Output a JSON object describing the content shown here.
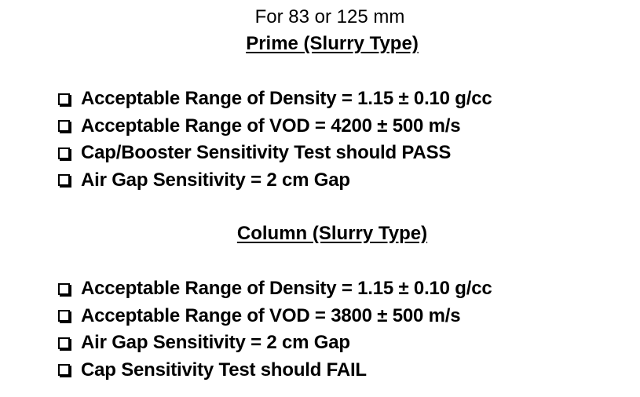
{
  "subtitle": "For 83 or 125 mm",
  "sections": [
    {
      "heading": "Prime (Slurry Type)",
      "items": [
        {
          "label": "Acceptable Range of Density = 1.15 ± 0.10 g/cc",
          "icon": "checkbox-empty-icon"
        },
        {
          "label": "Acceptable Range of VOD = 4200 ± 500 m/s",
          "icon": "checkbox-empty-icon"
        },
        {
          "label": "Cap/Booster Sensitivity Test should PASS",
          "icon": "checkbox-empty-icon"
        },
        {
          "label": "Air Gap Sensitivity = 2 cm Gap",
          "icon": "checkbox-empty-icon"
        }
      ]
    },
    {
      "heading": "Column (Slurry Type)",
      "items": [
        {
          "label": "Acceptable Range of Density = 1.15 ± 0.10 g/cc",
          "icon": "checkbox-empty-icon"
        },
        {
          "label": "Acceptable Range of VOD = 3800 ± 500 m/s",
          "icon": "checkbox-empty-icon"
        },
        {
          "label": "Air Gap Sensitivity = 2 cm Gap",
          "icon": "checkbox-empty-icon"
        },
        {
          "label": "Cap Sensitivity Test should FAIL",
          "icon": "checkbox-empty-icon"
        }
      ]
    }
  ]
}
